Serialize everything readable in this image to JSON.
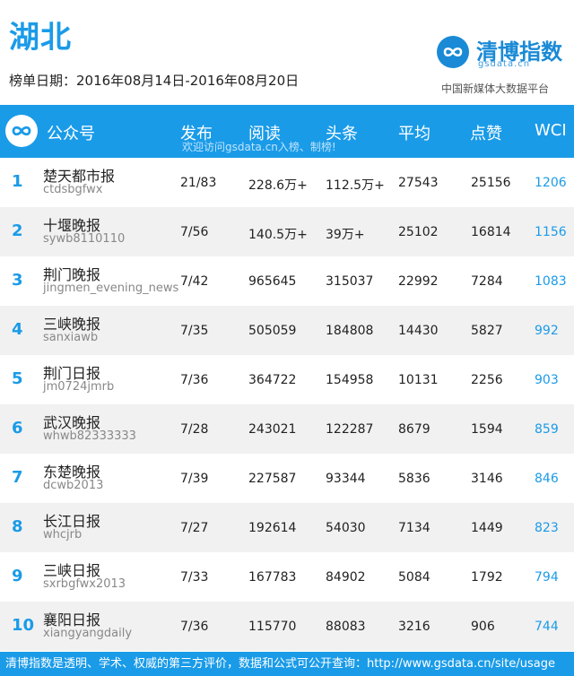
{
  "page": {
    "title": "湖北",
    "period": "榜单日期：2016年08月14日-2016年08月20日"
  },
  "brand": {
    "name": "清博指数",
    "domain": "gsdata.cn",
    "subtitle": "中国新媒体大数据平台",
    "icon": "infinity-logo-icon",
    "color": "#1a8ad6"
  },
  "table": {
    "columns": {
      "account": "公众号",
      "posts": "发布",
      "reads": "阅读",
      "headline": "头条",
      "avg": "平均",
      "likes": "点赞",
      "wci": "WCI"
    },
    "hint": "欢迎访问gsdata.cn入榜、制榜!",
    "rows": [
      {
        "rank": "1",
        "name": "楚天都市报",
        "id": "ctdsbgfwx",
        "posts": "21/83",
        "reads": "228.6万+",
        "headline": "112.5万+",
        "avg": "27543",
        "likes": "25156",
        "wci": "1206"
      },
      {
        "rank": "2",
        "name": "十堰晚报",
        "id": "sywb8110110",
        "posts": "7/56",
        "reads": "140.5万+",
        "headline": "39万+",
        "avg": "25102",
        "likes": "16814",
        "wci": "1156"
      },
      {
        "rank": "3",
        "name": "荆门晚报",
        "id": "jingmen_evening_news",
        "posts": "7/42",
        "reads": "965645",
        "headline": "315037",
        "avg": "22992",
        "likes": "7284",
        "wci": "1083"
      },
      {
        "rank": "4",
        "name": "三峡晚报",
        "id": "sanxiawb",
        "posts": "7/35",
        "reads": "505059",
        "headline": "184808",
        "avg": "14430",
        "likes": "5827",
        "wci": "992"
      },
      {
        "rank": "5",
        "name": "荆门日报",
        "id": "jm0724jmrb",
        "posts": "7/36",
        "reads": "364722",
        "headline": "154958",
        "avg": "10131",
        "likes": "2256",
        "wci": "903"
      },
      {
        "rank": "6",
        "name": "武汉晚报",
        "id": "whwb82333333",
        "posts": "7/28",
        "reads": "243021",
        "headline": "122287",
        "avg": "8679",
        "likes": "1594",
        "wci": "859"
      },
      {
        "rank": "7",
        "name": "东楚晚报",
        "id": "dcwb2013",
        "posts": "7/39",
        "reads": "227587",
        "headline": "93344",
        "avg": "5836",
        "likes": "3146",
        "wci": "846"
      },
      {
        "rank": "8",
        "name": "长江日报",
        "id": "whcjrb",
        "posts": "7/27",
        "reads": "192614",
        "headline": "54030",
        "avg": "7134",
        "likes": "1449",
        "wci": "823"
      },
      {
        "rank": "9",
        "name": "三峡日报",
        "id": "sxrbgfwx2013",
        "posts": "7/33",
        "reads": "167783",
        "headline": "84902",
        "avg": "5084",
        "likes": "1792",
        "wci": "794"
      },
      {
        "rank": "10",
        "name": "襄阳日报",
        "id": "xiangyangdaily",
        "posts": "7/36",
        "reads": "115770",
        "headline": "88083",
        "avg": "3216",
        "likes": "906",
        "wci": "744"
      }
    ]
  },
  "footer": {
    "text": "清博指数是透明、学术、权威的第三方评价，数据和公式可公开查询：http://www.gsdata.cn/site/usage"
  },
  "colors": {
    "accent": "#1a9be8",
    "rank": "#1a9be8",
    "wci": "#1a9be8",
    "row_alt": "#f1f1f1"
  }
}
